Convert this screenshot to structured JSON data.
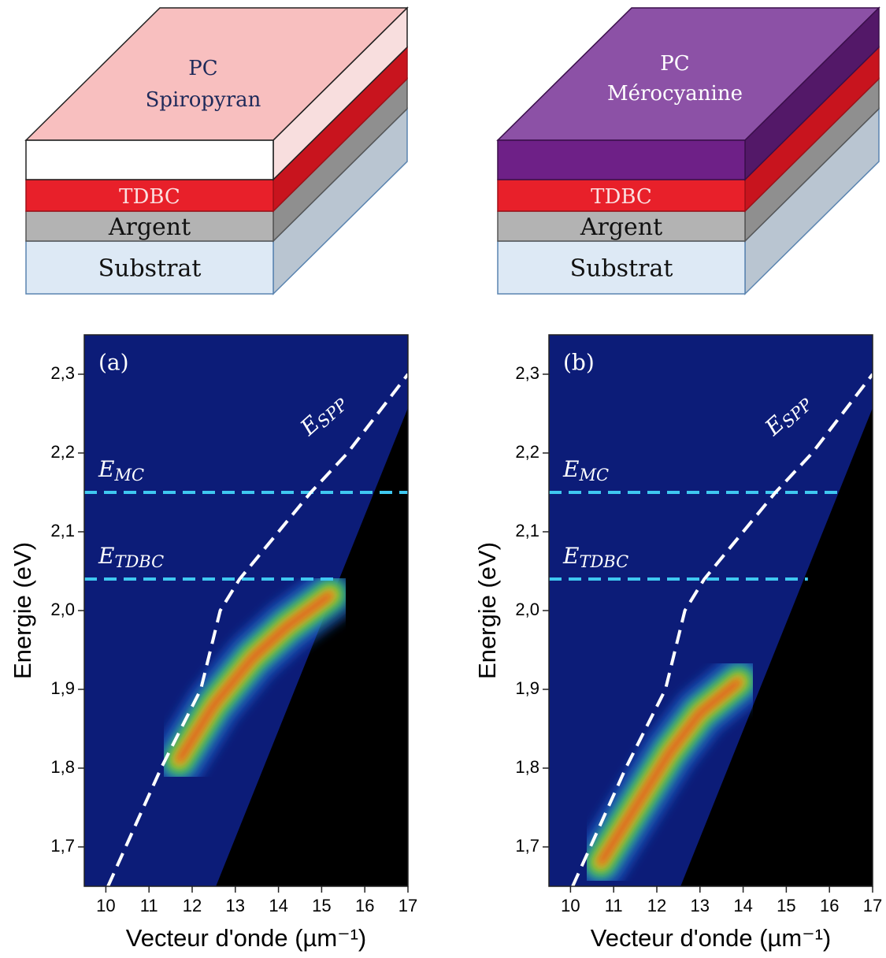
{
  "diagrams": [
    {
      "top": [
        "PC",
        "Spiropyran"
      ],
      "layers": [
        "TDBC",
        "Argent",
        "Substrat"
      ]
    },
    {
      "top": [
        "PC",
        "Mérocyanine"
      ],
      "layers": [
        "TDBC",
        "Argent",
        "Substrat"
      ]
    }
  ],
  "chart_data": [
    {
      "type": "heatmap",
      "panel": "(a)",
      "xlabel": "Vecteur d'onde (µm⁻¹)",
      "ylabel": "Energie (eV)",
      "xlim": [
        9.5,
        17
      ],
      "ylim": [
        1.65,
        2.35
      ],
      "xticks": [
        10,
        11,
        12,
        13,
        14,
        15,
        16,
        17
      ],
      "yticks": [
        {
          "value": 1.7,
          "label": "1,7"
        },
        {
          "value": 1.8,
          "label": "1,8"
        },
        {
          "value": 1.9,
          "label": "1,9"
        },
        {
          "value": 2.0,
          "label": "2,0"
        },
        {
          "value": 2.1,
          "label": "2,1"
        },
        {
          "value": 2.2,
          "label": "2,2"
        },
        {
          "value": 2.3,
          "label": "2,3"
        }
      ],
      "hlines": [
        {
          "label": "E",
          "sub": "MC",
          "value": 2.15,
          "xmax": 17
        },
        {
          "label": "E",
          "sub": "TDBC",
          "value": 2.04,
          "xmax": 15.4
        }
      ],
      "spp": {
        "label": "E",
        "sub": "SPP",
        "x": [
          10.05,
          11.28,
          12.2,
          12.65,
          13.1,
          14.75,
          15.6,
          17
        ],
        "y": [
          1.65,
          1.8,
          1.9,
          2.0,
          2.04,
          2.15,
          2.2,
          2.3
        ]
      },
      "light_line": {
        "x": [
          12.56,
          17
        ],
        "y": [
          1.65,
          2.256
        ]
      },
      "emission": {
        "x": [
          11.7,
          12.5,
          13.4,
          14.2,
          15.2
        ],
        "y": [
          1.81,
          1.88,
          1.94,
          1.98,
          2.02
        ]
      }
    },
    {
      "type": "heatmap",
      "panel": "(b)",
      "xlabel": "Vecteur d'onde (µm⁻¹)",
      "ylabel": "Energie (eV)",
      "xlim": [
        9.5,
        17
      ],
      "ylim": [
        1.65,
        2.35
      ],
      "xticks": [
        10,
        11,
        12,
        13,
        14,
        15,
        16,
        17
      ],
      "yticks": [
        {
          "value": 1.7,
          "label": "1,7"
        },
        {
          "value": 1.8,
          "label": "1,8"
        },
        {
          "value": 1.9,
          "label": "1,9"
        },
        {
          "value": 2.0,
          "label": "2,0"
        },
        {
          "value": 2.1,
          "label": "2,1"
        },
        {
          "value": 2.2,
          "label": "2,2"
        },
        {
          "value": 2.3,
          "label": "2,3"
        }
      ],
      "hlines": [
        {
          "label": "E",
          "sub": "MC",
          "value": 2.15,
          "xmax": 16.3
        },
        {
          "label": "E",
          "sub": "TDBC",
          "value": 2.04,
          "xmax": 15.5
        }
      ],
      "spp": {
        "label": "E",
        "sub": "SPP",
        "x": [
          10.05,
          11.28,
          12.2,
          12.65,
          13.1,
          14.75,
          15.6,
          17
        ],
        "y": [
          1.65,
          1.8,
          1.9,
          2.0,
          2.04,
          2.15,
          2.2,
          2.3
        ]
      },
      "light_line": {
        "x": [
          12.56,
          17
        ],
        "y": [
          1.65,
          2.256
        ]
      },
      "emission": {
        "x": [
          10.7,
          11.5,
          12.3,
          13.0,
          13.9
        ],
        "y": [
          1.68,
          1.75,
          1.82,
          1.87,
          1.91
        ]
      }
    }
  ]
}
